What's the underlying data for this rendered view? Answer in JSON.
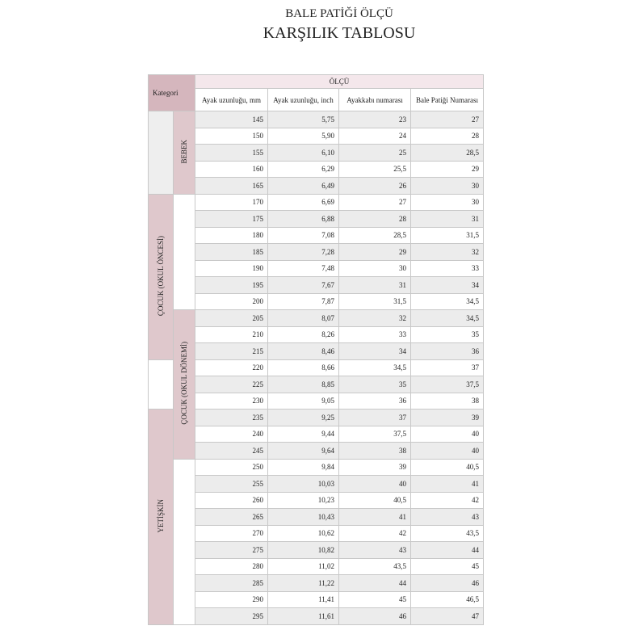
{
  "title_line1": "BALE PATİĞİ ÖLÇÜ",
  "title_line2": "KARŞILIK TABLOSU",
  "header": {
    "category": "Kategori",
    "group": "ÖLÇÜ",
    "columns": [
      "Ayak uzunluğu, mm",
      "Ayak uzunluğu, inch",
      "Ayakkabı numarası",
      "Bale Patiği Numarası"
    ]
  },
  "categories": {
    "outer": [
      {
        "label": "",
        "rows": 5,
        "color": "light"
      },
      {
        "label": "ÇOCUK  (OKUL ÖNCESİ)",
        "rows": 10,
        "color": "pink"
      },
      {
        "label": "",
        "rows": 3,
        "color": "white"
      },
      {
        "label": "YETİŞKİN",
        "rows": 13,
        "color": "pink"
      }
    ],
    "inner": [
      {
        "label": "BEBEK",
        "rows": 5,
        "color": "pink"
      },
      {
        "label": "",
        "rows": 7,
        "color": "white"
      },
      {
        "label": "ÇOCUK (OKUL DÖNEMİ)",
        "rows": 9,
        "color": "pink"
      },
      {
        "label": "",
        "rows": 10,
        "color": "white"
      }
    ]
  },
  "rows": [
    [
      "145",
      "5,75",
      "23",
      "27"
    ],
    [
      "150",
      "5,90",
      "24",
      "28"
    ],
    [
      "155",
      "6,10",
      "25",
      "28,5"
    ],
    [
      "160",
      "6,29",
      "25,5",
      "29"
    ],
    [
      "165",
      "6,49",
      "26",
      "30"
    ],
    [
      "170",
      "6,69",
      "27",
      "30"
    ],
    [
      "175",
      "6,88",
      "28",
      "31"
    ],
    [
      "180",
      "7,08",
      "28,5",
      "31,5"
    ],
    [
      "185",
      "7,28",
      "29",
      "32"
    ],
    [
      "190",
      "7,48",
      "30",
      "33"
    ],
    [
      "195",
      "7,67",
      "31",
      "34"
    ],
    [
      "200",
      "7,87",
      "31,5",
      "34,5"
    ],
    [
      "205",
      "8,07",
      "32",
      "34,5"
    ],
    [
      "210",
      "8,26",
      "33",
      "35"
    ],
    [
      "215",
      "8,46",
      "34",
      "36"
    ],
    [
      "220",
      "8,66",
      "34,5",
      "37"
    ],
    [
      "225",
      "8,85",
      "35",
      "37,5"
    ],
    [
      "230",
      "9,05",
      "36",
      "38"
    ],
    [
      "235",
      "9,25",
      "37",
      "39"
    ],
    [
      "240",
      "9,44",
      "37,5",
      "40"
    ],
    [
      "245",
      "9,64",
      "38",
      "40"
    ],
    [
      "250",
      "9,84",
      "39",
      "40,5"
    ],
    [
      "255",
      "10,03",
      "40",
      "41"
    ],
    [
      "260",
      "10,23",
      "40,5",
      "42"
    ],
    [
      "265",
      "10,43",
      "41",
      "43"
    ],
    [
      "270",
      "10,62",
      "42",
      "43,5"
    ],
    [
      "275",
      "10,82",
      "43",
      "44"
    ],
    [
      "280",
      "11,02",
      "43,5",
      "45"
    ],
    [
      "285",
      "11,22",
      "44",
      "46"
    ],
    [
      "290",
      "11,41",
      "45",
      "46,5"
    ],
    [
      "295",
      "11,61",
      "46",
      "47"
    ]
  ],
  "colors": {
    "header_category": "#d5b6bd",
    "header_group": "#f4e7eb",
    "category_pink": "#dfc8cc",
    "row_alt": "#ececec"
  }
}
